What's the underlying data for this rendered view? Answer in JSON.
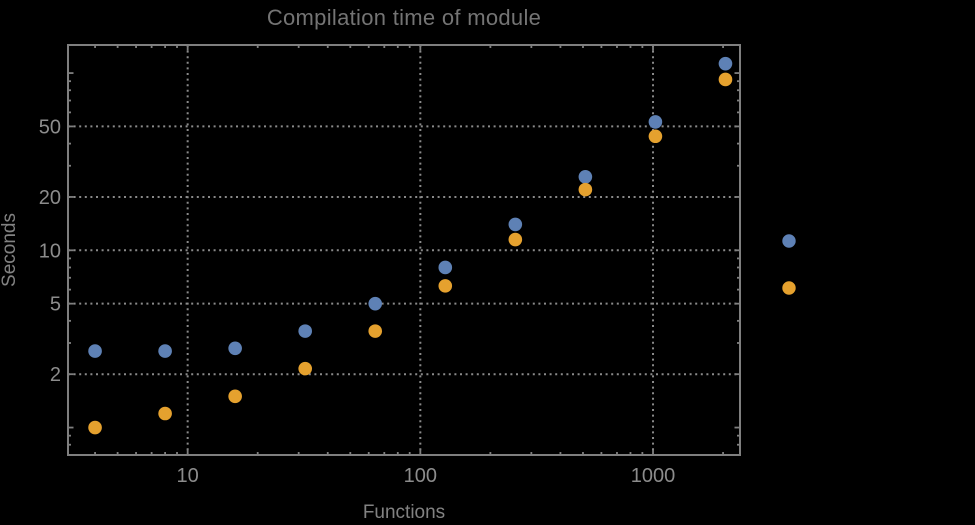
{
  "colors": {
    "background": "#000000",
    "frame": "#7f7f7f",
    "grid": "#8a8a8a",
    "tick_label": "#8c8c8c",
    "title_text": "#747474",
    "axis_label_text": "#828282",
    "series_blue": "#5E81B5",
    "series_orange": "#E5A12E"
  },
  "chart_data": {
    "type": "scatter",
    "title": "Compilation time of module",
    "xlabel": "Functions",
    "ylabel": "Seconds",
    "x_scale": "log",
    "y_scale": "log",
    "xlim": [
      3.06,
      2365
    ],
    "ylim": [
      0.7,
      144
    ],
    "grid": "dotted at labeled major ticks",
    "x_major_ticks": [
      10,
      100,
      1000
    ],
    "x_major_tick_labels": [
      "10",
      "100",
      "1000"
    ],
    "x_minor_ticks": [
      4,
      5,
      6,
      7,
      8,
      9,
      20,
      30,
      40,
      50,
      60,
      70,
      80,
      90,
      200,
      300,
      400,
      500,
      600,
      700,
      800,
      900,
      2000
    ],
    "y_major_ticks": [
      2,
      5,
      10,
      20,
      50
    ],
    "y_major_tick_labels": [
      "2",
      "5",
      "10",
      "20",
      "50"
    ],
    "y_unlabeled_major_ticks": [
      1,
      100
    ],
    "y_minor_ticks": [
      0.8,
      0.9,
      3,
      4,
      6,
      7,
      8,
      9,
      30,
      40,
      60,
      70,
      80,
      90
    ],
    "series": [
      {
        "name": "blue",
        "color": "#5E81B5",
        "values": [
          [
            4,
            2.7
          ],
          [
            8,
            2.7
          ],
          [
            16,
            2.8
          ],
          [
            32,
            3.5
          ],
          [
            64,
            5.0
          ],
          [
            128,
            8.0
          ],
          [
            256,
            14
          ],
          [
            512,
            26
          ],
          [
            1024,
            53
          ],
          [
            2048,
            113
          ]
        ]
      },
      {
        "name": "orange",
        "color": "#E5A12E",
        "values": [
          [
            4,
            1.0
          ],
          [
            8,
            1.2
          ],
          [
            16,
            1.5
          ],
          [
            32,
            2.15
          ],
          [
            64,
            3.5
          ],
          [
            128,
            6.3
          ],
          [
            256,
            11.5
          ],
          [
            512,
            22
          ],
          [
            1024,
            44
          ],
          [
            2048,
            92
          ]
        ]
      }
    ],
    "legend": {
      "position": "outside-right-middle",
      "labels_visible": false,
      "markers": [
        {
          "name": "blue-series-marker",
          "color": "#5E81B5"
        },
        {
          "name": "orange-series-marker",
          "color": "#E5A12E"
        }
      ]
    }
  }
}
